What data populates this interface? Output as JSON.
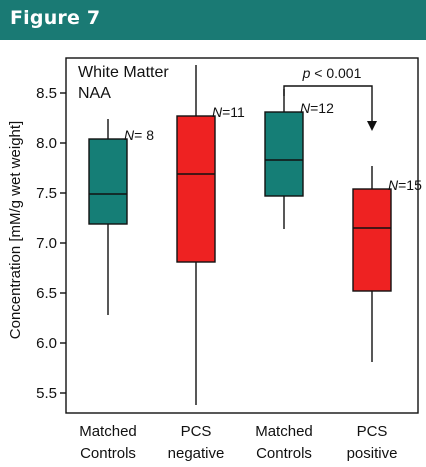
{
  "header": {
    "title": "Figure 7",
    "color": "#1a7a74"
  },
  "chart_data": {
    "type": "box",
    "annotation_title": "White Matter",
    "annotation_subtitle": "NAA",
    "ylabel": "Concentration [mM/g wet weight]",
    "ylim": [
      5.3,
      8.85
    ],
    "yticks": [
      "5.5",
      "6.0",
      "6.5",
      "7.0",
      "7.5",
      "8.0",
      "8.5"
    ],
    "categories": [
      {
        "line1": "Matched",
        "line2": "Controls"
      },
      {
        "line1": "PCS",
        "line2": "negative"
      },
      {
        "line1": "Matched",
        "line2": "Controls"
      },
      {
        "line1": "PCS",
        "line2": "positive"
      }
    ],
    "boxes": [
      {
        "min": 6.28,
        "q1": 7.19,
        "median": 7.49,
        "q3": 8.04,
        "max": 8.24,
        "n_prefix": "N",
        "n_value": "= 8",
        "color": "#157e76"
      },
      {
        "min": 5.38,
        "q1": 6.81,
        "median": 7.69,
        "q3": 8.27,
        "max": 8.78,
        "n_prefix": "N",
        "n_value": "=11",
        "color": "#ee2222"
      },
      {
        "min": 7.14,
        "q1": 7.47,
        "median": 7.83,
        "q3": 8.31,
        "max": 8.54,
        "n_prefix": "N",
        "n_value": "=12",
        "color": "#157e76"
      },
      {
        "min": 5.81,
        "q1": 6.52,
        "median": 7.15,
        "q3": 7.54,
        "max": 7.77,
        "n_prefix": "N",
        "n_value": "=15",
        "color": "#ee2222"
      }
    ],
    "significance": {
      "label": "p < 0.001",
      "from": 2,
      "to": 3
    }
  }
}
